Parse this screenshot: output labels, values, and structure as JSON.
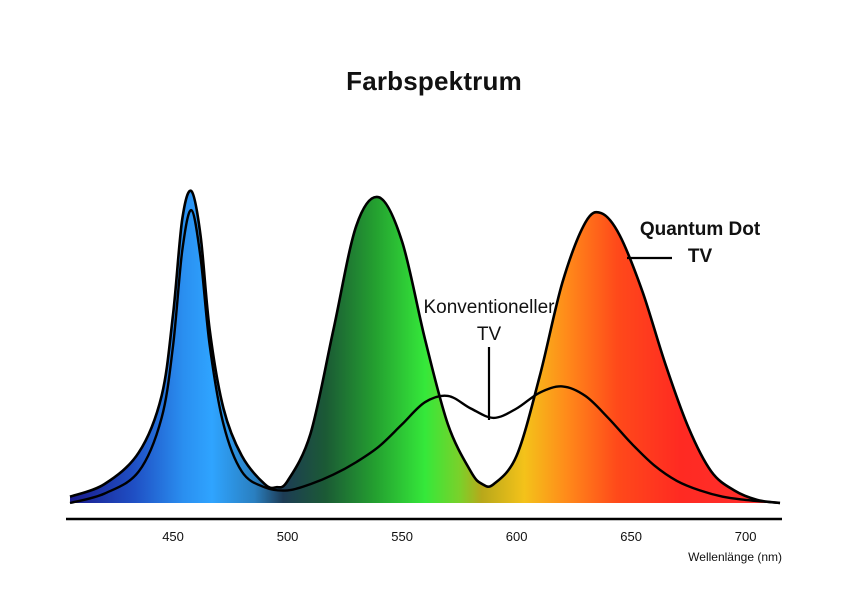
{
  "title": "Farbspektrum",
  "chart_data": {
    "type": "area",
    "xlabel": "Wellenlänge (nm)",
    "ylabel": "",
    "xlim": [
      405,
      715
    ],
    "ylim": [
      0,
      1
    ],
    "x_ticks": [
      450,
      500,
      550,
      600,
      650,
      700
    ],
    "grid": false,
    "series": [
      {
        "name": "Quantum Dot TV",
        "label_lines": [
          "Quantum Dot",
          "TV"
        ],
        "x": [
          405,
          420,
          435,
          445,
          450,
          454,
          458,
          462,
          466,
          472,
          480,
          490,
          495,
          500,
          510,
          520,
          530,
          540,
          550,
          560,
          570,
          580,
          585,
          590,
          600,
          610,
          620,
          630,
          637,
          645,
          655,
          665,
          675,
          685,
          695,
          705,
          715
        ],
        "y": [
          0.02,
          0.06,
          0.16,
          0.34,
          0.6,
          0.9,
          0.99,
          0.85,
          0.55,
          0.3,
          0.15,
          0.06,
          0.05,
          0.07,
          0.22,
          0.55,
          0.88,
          0.97,
          0.83,
          0.52,
          0.25,
          0.1,
          0.06,
          0.06,
          0.15,
          0.4,
          0.7,
          0.89,
          0.92,
          0.85,
          0.67,
          0.44,
          0.24,
          0.1,
          0.04,
          0.01,
          0.0
        ]
      },
      {
        "name": "Konventioneller TV",
        "label_lines": [
          "Konventioneller",
          "TV"
        ],
        "x": [
          405,
          420,
          435,
          445,
          450,
          454,
          458,
          462,
          466,
          472,
          480,
          490,
          500,
          510,
          520,
          530,
          540,
          550,
          560,
          570,
          580,
          590,
          600,
          610,
          620,
          630,
          640,
          650,
          660,
          670,
          680,
          690,
          700,
          715
        ],
        "y": [
          0.0,
          0.03,
          0.1,
          0.27,
          0.5,
          0.8,
          0.93,
          0.78,
          0.5,
          0.25,
          0.1,
          0.05,
          0.04,
          0.06,
          0.09,
          0.13,
          0.18,
          0.25,
          0.32,
          0.34,
          0.3,
          0.27,
          0.3,
          0.35,
          0.37,
          0.34,
          0.27,
          0.19,
          0.12,
          0.07,
          0.04,
          0.02,
          0.01,
          0.0
        ]
      }
    ]
  }
}
